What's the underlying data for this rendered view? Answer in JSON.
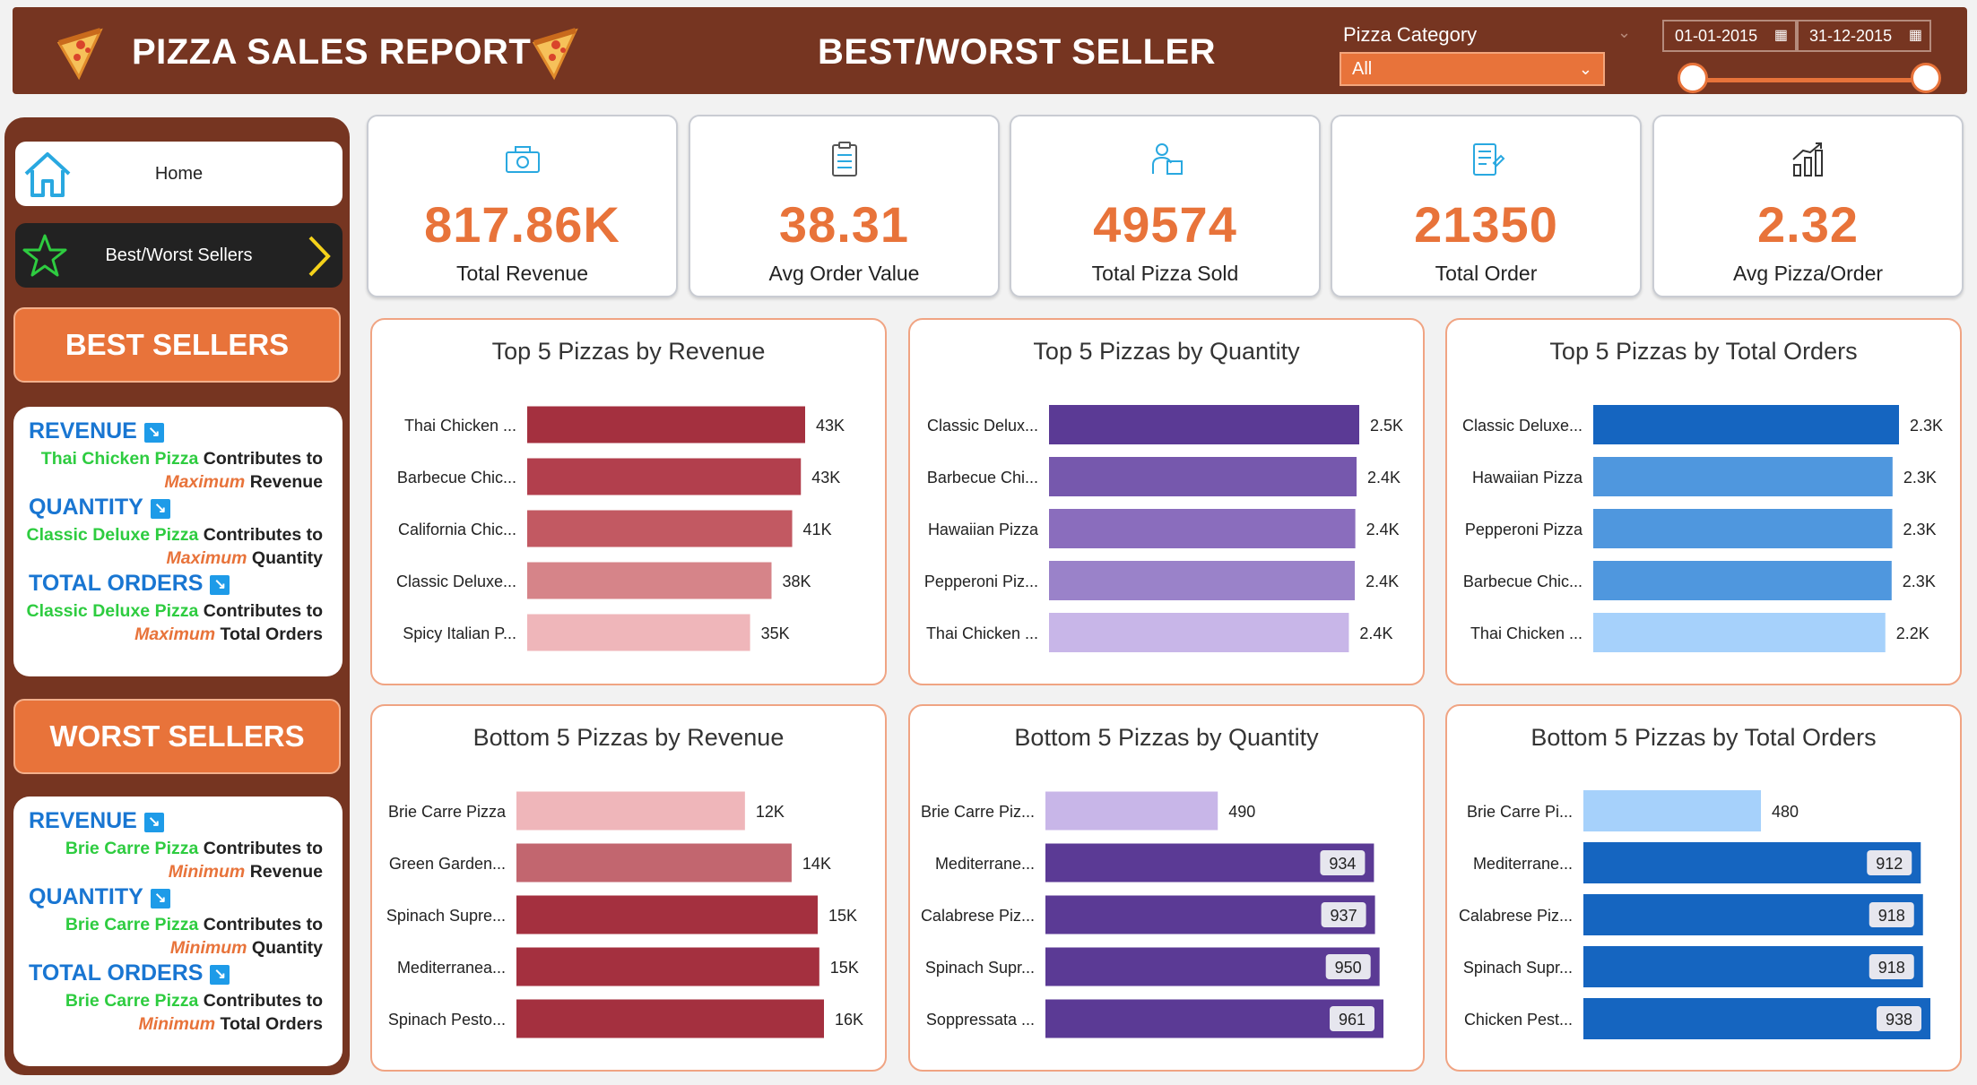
{
  "header": {
    "title": "PIZZA SALES REPORT",
    "page_title": "BEST/WORST SELLER",
    "category_label": "Pizza Category",
    "category_value": "All",
    "date_start": "01-01-2015",
    "date_end": "31-12-2015",
    "date_range_start_fraction": 0,
    "date_range_end_fraction": 1
  },
  "nav": {
    "home": "Home",
    "best_worst": "Best/Worst Sellers"
  },
  "best": {
    "title": "BEST SELLERS",
    "revenue_head": "REVENUE",
    "revenue_pizza": "Thai Chicken Pizza",
    "quantity_head": "QUANTITY",
    "quantity_pizza": "Classic Deluxe Pizza",
    "orders_head": "TOTAL ORDERS",
    "orders_pizza": "Classic Deluxe Pizza",
    "contributes": "Contributes to",
    "qualifier": "Maximum",
    "w_revenue": "Revenue",
    "w_quantity": "Quantity",
    "w_orders": "Total Orders"
  },
  "worst": {
    "title": "WORST SELLERS",
    "revenue_head": "REVENUE",
    "revenue_pizza": "Brie Carre Pizza",
    "quantity_head": "QUANTITY",
    "quantity_pizza": "Brie Carre Pizza",
    "orders_head": "TOTAL ORDERS",
    "orders_pizza": "Brie Carre Pizza",
    "contributes": "Contributes to",
    "qualifier": "Minimum",
    "w_revenue": "Revenue",
    "w_quantity": "Quantity",
    "w_orders": "Total Orders"
  },
  "kpis": [
    {
      "value": "817.86K",
      "label": "Total Revenue",
      "icon": "money-icon"
    },
    {
      "value": "38.31",
      "label": "Avg Order Value",
      "icon": "clipboard-icon"
    },
    {
      "value": "49574",
      "label": "Total Pizza Sold",
      "icon": "delivery-icon"
    },
    {
      "value": "21350",
      "label": "Total Order",
      "icon": "order-list-icon"
    },
    {
      "value": "2.32",
      "label": "Avg Pizza/Order",
      "icon": "growth-chart-icon"
    }
  ],
  "colors": {
    "brown": "#763521",
    "orange": "#e8733a",
    "blue_text": "#1976d2",
    "green_text": "#2ecc40"
  },
  "chart_data": [
    {
      "type": "bar",
      "orientation": "horizontal",
      "title": "Top 5 Pizzas by Revenue",
      "categories": [
        "Thai Chicken ...",
        "Barbecue Chic...",
        "California Chic...",
        "Classic Deluxe...",
        "Spicy Italian P..."
      ],
      "values": [
        43434,
        42768,
        41410,
        38180,
        34831
      ],
      "labels": [
        "43K",
        "43K",
        "41K",
        "38K",
        "35K"
      ],
      "colors": [
        "#a4303f",
        "#b23f4d",
        "#c25962",
        "#d68489",
        "#efb6ba"
      ],
      "label_inside": false
    },
    {
      "type": "bar",
      "orientation": "horizontal",
      "title": "Top 5 Pizzas by Quantity",
      "categories": [
        "Classic Delux...",
        "Barbecue Chi...",
        "Hawaiian Pizza",
        "Pepperoni Piz...",
        "Thai Chicken ..."
      ],
      "values": [
        2453,
        2432,
        2422,
        2418,
        2371
      ],
      "labels": [
        "2.5K",
        "2.4K",
        "2.4K",
        "2.4K",
        "2.4K"
      ],
      "colors": [
        "#5b3a95",
        "#7658ad",
        "#8a6dbd",
        "#9a82c9",
        "#c8b6e8"
      ],
      "label_inside": false
    },
    {
      "type": "bar",
      "orientation": "horizontal",
      "title": "Top 5 Pizzas by Total Orders",
      "categories": [
        "Classic Deluxe...",
        "Hawaiian Pizza",
        "Pepperoni Pizza",
        "Barbecue Chic...",
        "Thai Chicken ..."
      ],
      "values": [
        2329,
        2280,
        2278,
        2273,
        2225
      ],
      "labels": [
        "2.3K",
        "2.3K",
        "2.3K",
        "2.3K",
        "2.2K"
      ],
      "colors": [
        "#1565c0",
        "#4f97de",
        "#4f97de",
        "#4f97de",
        "#a6d1fb"
      ],
      "label_inside": false
    },
    {
      "type": "bar",
      "orientation": "horizontal",
      "title": "Bottom 5 Pizzas by Revenue",
      "categories": [
        "Brie Carre Pizza",
        "Green Garden...",
        "Spinach Supre...",
        "Mediterranea...",
        "Spinach Pesto..."
      ],
      "values": [
        11588,
        13956,
        15278,
        15360,
        15596
      ],
      "labels": [
        "12K",
        "14K",
        "15K",
        "15K",
        "16K"
      ],
      "colors": [
        "#efb6ba",
        "#c2666f",
        "#a4303f",
        "#a4303f",
        "#a4303f"
      ],
      "label_inside": false
    },
    {
      "type": "bar",
      "orientation": "horizontal",
      "title": "Bottom 5 Pizzas by Quantity",
      "categories": [
        "Brie Carre Piz...",
        "Mediterrane...",
        "Calabrese Piz...",
        "Spinach Supr...",
        "Soppressata ..."
      ],
      "values": [
        490,
        934,
        937,
        950,
        961
      ],
      "labels": [
        "490",
        "934",
        "937",
        "950",
        "961"
      ],
      "colors": [
        "#c8b6e8",
        "#5b3a95",
        "#5b3a95",
        "#5b3a95",
        "#5b3a95"
      ],
      "label_inside": true
    },
    {
      "type": "bar",
      "orientation": "horizontal",
      "title": "Bottom 5 Pizzas by Total Orders",
      "categories": [
        "Brie Carre Pi...",
        "Mediterrane...",
        "Calabrese Piz...",
        "Spinach Supr...",
        "Chicken Pest..."
      ],
      "values": [
        480,
        912,
        918,
        918,
        938
      ],
      "labels": [
        "480",
        "912",
        "918",
        "918",
        "938"
      ],
      "colors": [
        "#a6d1fb",
        "#1565c0",
        "#1565c0",
        "#1565c0",
        "#1565c0"
      ],
      "label_inside": true
    }
  ]
}
